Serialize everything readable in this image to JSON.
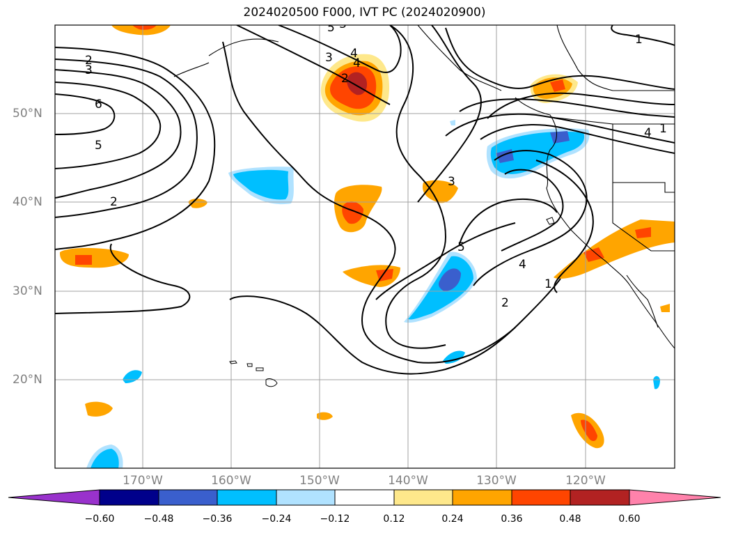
{
  "title": "2024020500 F000, IVT PC (2024020900)",
  "lat_labels": [
    "50°N",
    "40°N",
    "30°N",
    "20°N"
  ],
  "lon_labels": [
    "170°W",
    "160°W",
    "150°W",
    "140°W",
    "130°W",
    "120°W"
  ],
  "contour_labels": [
    "1",
    "2",
    "3",
    "4",
    "5",
    "6",
    "4",
    "3",
    "2",
    "5",
    "2",
    "1",
    "4",
    "2",
    "3",
    "3",
    "4",
    "5",
    "1"
  ],
  "colorbar": {
    "ticks": [
      "−0.60",
      "−0.48",
      "−0.36",
      "−0.24",
      "−0.12",
      "0.12",
      "0.24",
      "0.36",
      "0.48",
      "0.60"
    ],
    "colors": {
      "under": "#9932cc",
      "neg060": "#00008b",
      "neg048": "#3a5fcd",
      "neg036": "#00bfff",
      "neg024": "#b0e2ff",
      "zero": "#ffffff",
      "pos012": "#fee88b",
      "pos024": "#ffa500",
      "pos036": "#ff4500",
      "pos048": "#b22222",
      "over": "#ff82ab"
    }
  }
}
